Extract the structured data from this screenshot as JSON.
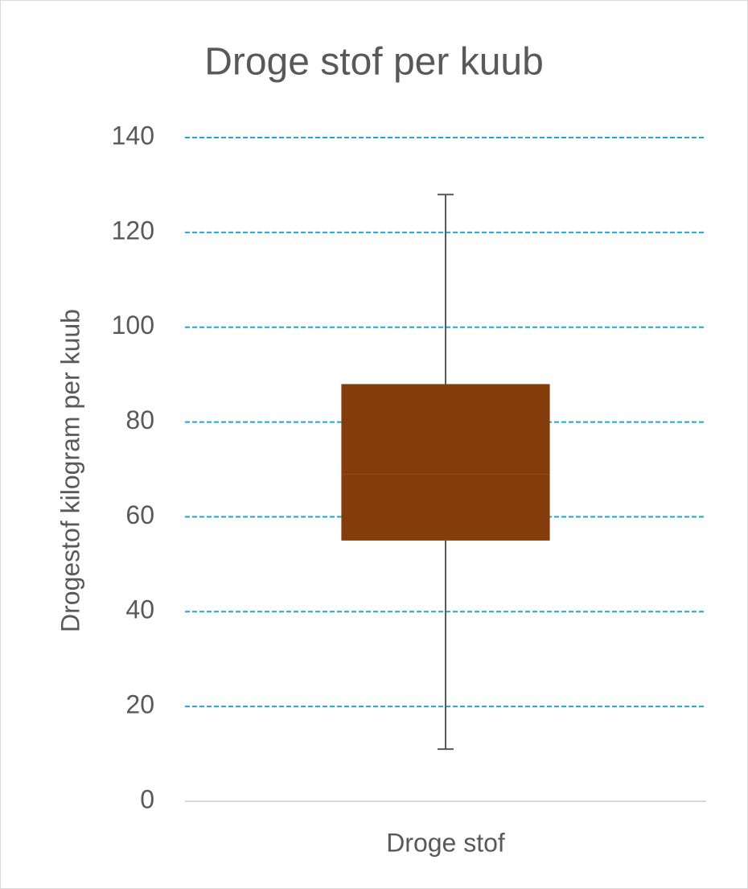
{
  "chart_data": {
    "type": "box",
    "title": "Droge stof per kuub",
    "y_label": "Drogestof kilogram per kuub",
    "categories": [
      "Droge stof"
    ],
    "boxes": [
      {
        "min": 11,
        "q1": 55,
        "median": 69,
        "q3": 88,
        "max": 128
      }
    ],
    "color": "#843c0c",
    "ylim": [
      0,
      140
    ],
    "yticks": [
      0,
      20,
      40,
      60,
      80,
      100,
      120,
      140
    ],
    "grid": true,
    "grid_color": "#1aa7dc"
  }
}
